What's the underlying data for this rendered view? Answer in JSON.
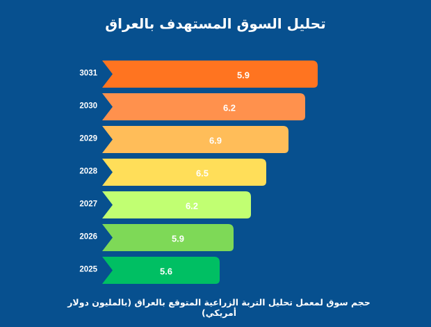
{
  "chart_data": {
    "type": "bar",
    "orientation": "horizontal",
    "title": "تحليل السوق المستهدف بالعراق",
    "xlabel": "حجم سوق  لمعمل تحليل التربة الزراعية  المتوقع بالعراق (بالمليون دولار أمريكي)",
    "ylabel": "",
    "categories": [
      "3031",
      "2030",
      "2029",
      "2028",
      "2027",
      "2026",
      "2025"
    ],
    "values": [
      5.9,
      6.2,
      6.9,
      6.5,
      6.2,
      5.9,
      5.6
    ],
    "colors": [
      "#FF7420",
      "#FF914D",
      "#FFBD59",
      "#FFDE59",
      "#C1FF72",
      "#7ED957",
      "#00BF63"
    ],
    "grid": false,
    "legend": "none"
  }
}
